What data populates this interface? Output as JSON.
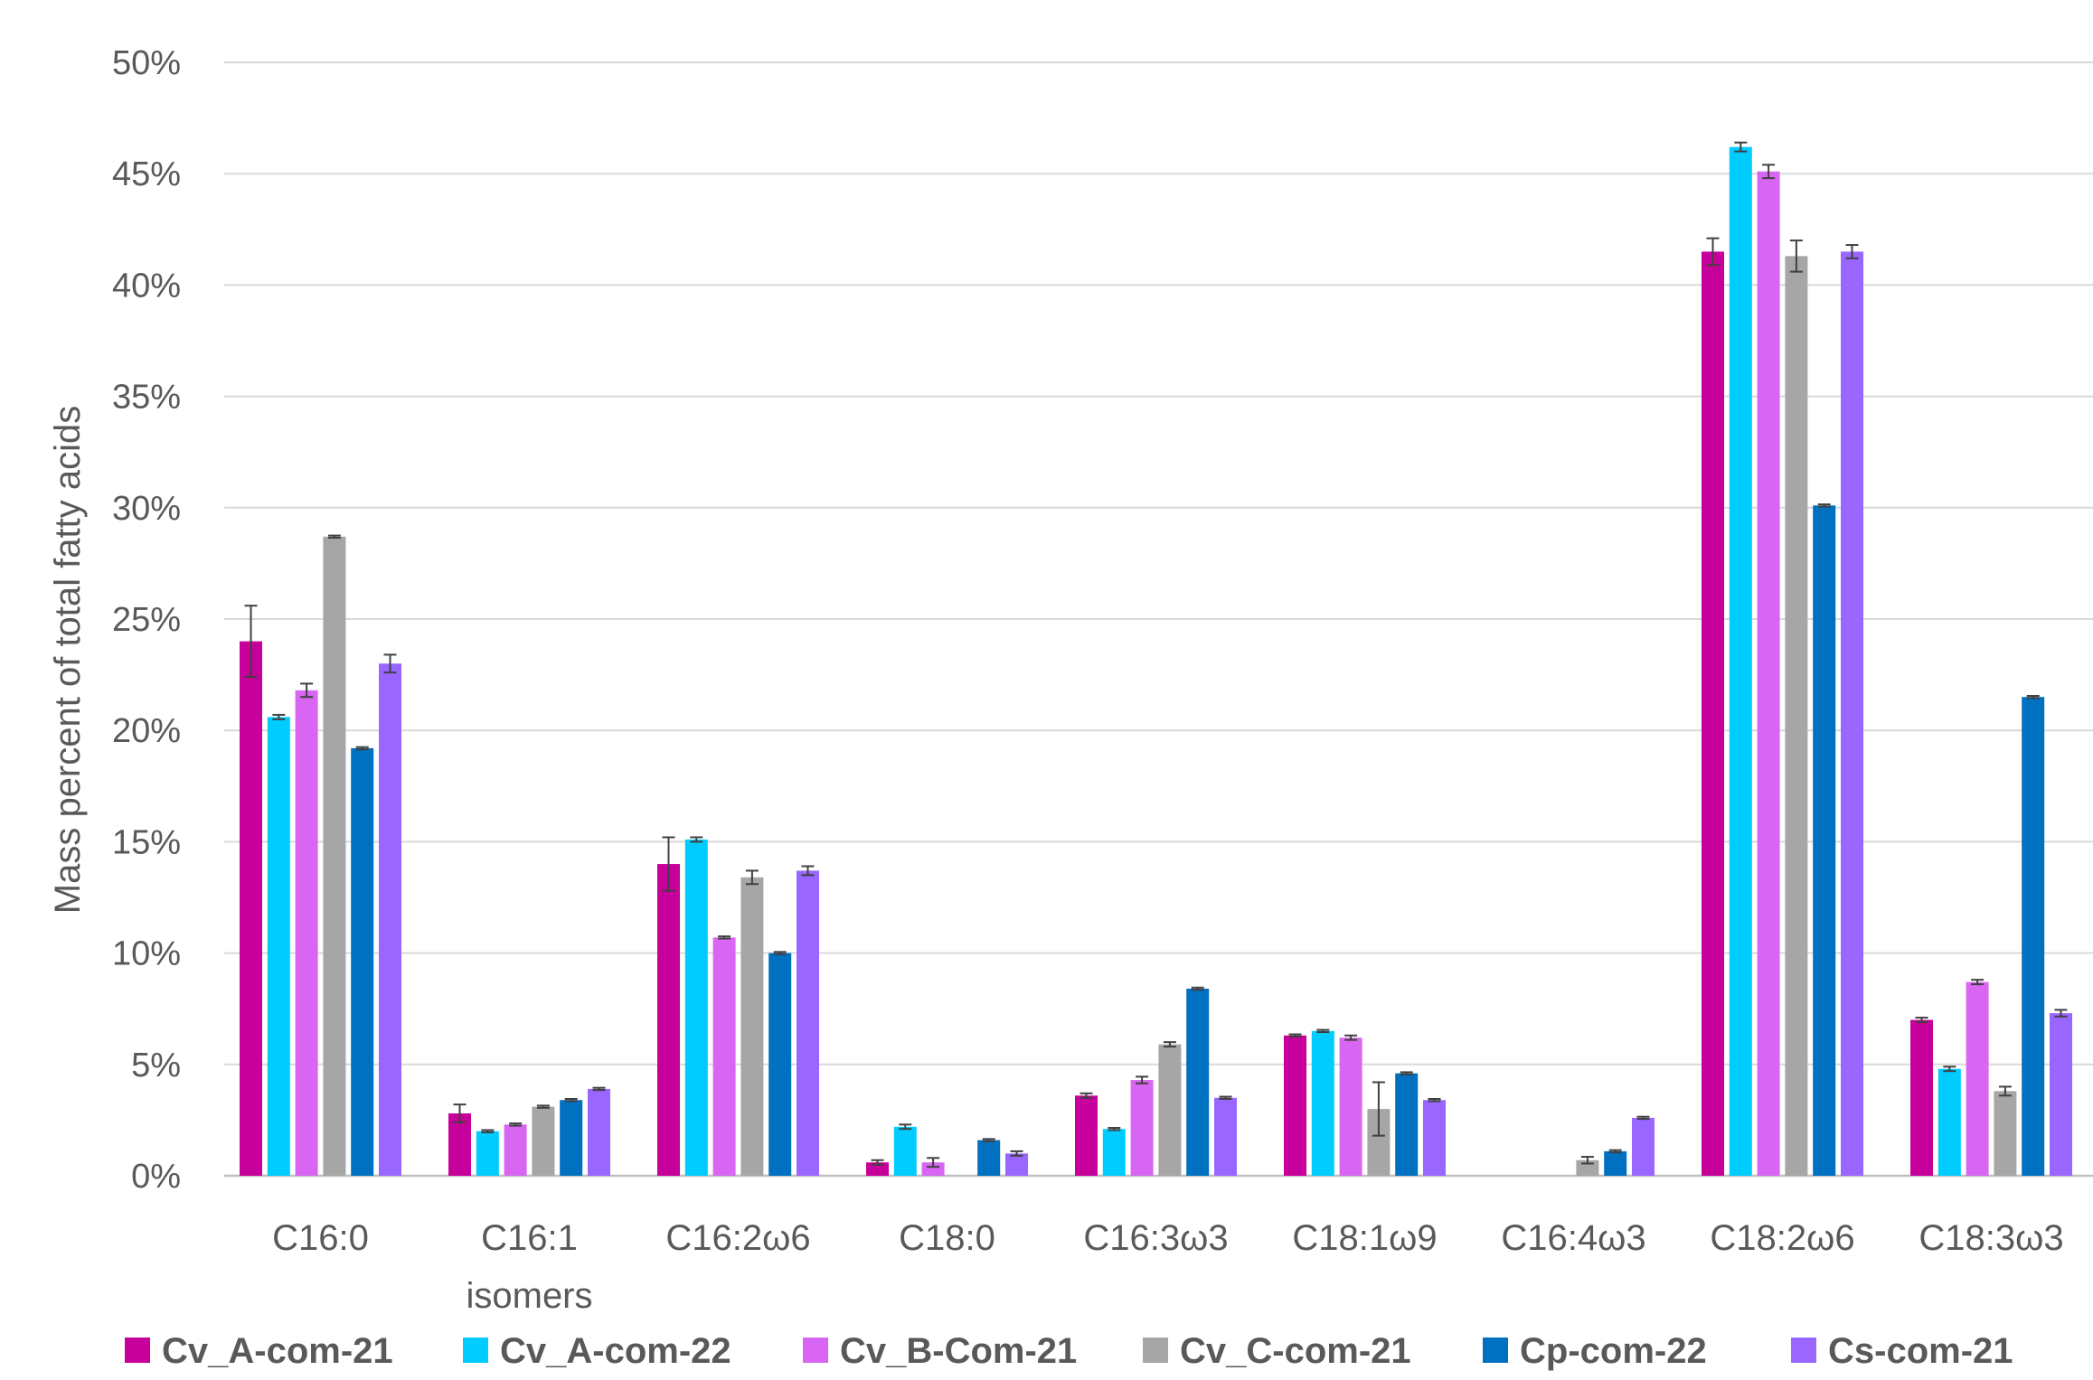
{
  "chart_data": {
    "type": "bar",
    "title": "",
    "xlabel": "",
    "ylabel": "Mass percent of total fatty acids",
    "ylim": [
      0,
      50
    ],
    "yticks": [
      "0%",
      "5%",
      "10%",
      "15%",
      "20%",
      "25%",
      "30%",
      "35%",
      "40%",
      "45%",
      "50%"
    ],
    "grid": true,
    "legend_position": "bottom",
    "categories": [
      {
        "line1": "C16:0",
        "line2": ""
      },
      {
        "line1": "C16:1",
        "line2": "isomers"
      },
      {
        "line1": "C16:2ω6",
        "line2": ""
      },
      {
        "line1": "C18:0",
        "line2": ""
      },
      {
        "line1": "C16:3ω3",
        "line2": ""
      },
      {
        "line1": "C18:1ω9",
        "line2": ""
      },
      {
        "line1": "C16:4ω3",
        "line2": ""
      },
      {
        "line1": "C18:2ω6",
        "line2": ""
      },
      {
        "line1": "C18:3ω3",
        "line2": ""
      }
    ],
    "series": [
      {
        "name": "Cv_A-com-21",
        "color": "#C8009B",
        "values": [
          24.0,
          2.8,
          14.0,
          0.6,
          3.6,
          6.3,
          null,
          41.5,
          7.0
        ],
        "errors": [
          1.6,
          0.4,
          1.2,
          0.1,
          0.1,
          0.05,
          null,
          0.6,
          0.1
        ]
      },
      {
        "name": "Cv_A-com-22",
        "color": "#00CCFF",
        "values": [
          20.6,
          2.0,
          15.1,
          2.2,
          2.1,
          6.5,
          null,
          46.2,
          4.8
        ],
        "errors": [
          0.1,
          0.05,
          0.1,
          0.1,
          0.05,
          0.05,
          null,
          0.2,
          0.1
        ]
      },
      {
        "name": "Cv_B-Com-21",
        "color": "#D966F2",
        "values": [
          21.8,
          2.3,
          10.7,
          0.6,
          4.3,
          6.2,
          null,
          45.1,
          8.7
        ],
        "errors": [
          0.3,
          0.05,
          0.05,
          0.2,
          0.15,
          0.1,
          null,
          0.3,
          0.1
        ]
      },
      {
        "name": "Cv_C-com-21",
        "color": "#A6A6A6",
        "values": [
          28.7,
          3.1,
          13.4,
          null,
          5.9,
          3.0,
          0.7,
          41.3,
          3.8
        ],
        "errors": [
          0.05,
          0.05,
          0.3,
          null,
          0.1,
          1.2,
          0.15,
          0.7,
          0.2
        ]
      },
      {
        "name": "Cp-com-22",
        "color": "#0070C0",
        "values": [
          19.2,
          3.4,
          10.0,
          1.6,
          8.4,
          4.6,
          1.1,
          30.1,
          21.5
        ],
        "errors": [
          0.05,
          0.05,
          0.05,
          0.05,
          0.05,
          0.05,
          0.05,
          0.05,
          0.05
        ]
      },
      {
        "name": "Cs-com-21",
        "color": "#9966FF",
        "values": [
          23.0,
          3.9,
          13.7,
          1.0,
          3.5,
          3.4,
          2.6,
          41.5,
          7.3
        ],
        "errors": [
          0.4,
          0.05,
          0.2,
          0.1,
          0.05,
          0.05,
          0.05,
          0.3,
          0.15
        ]
      }
    ]
  }
}
